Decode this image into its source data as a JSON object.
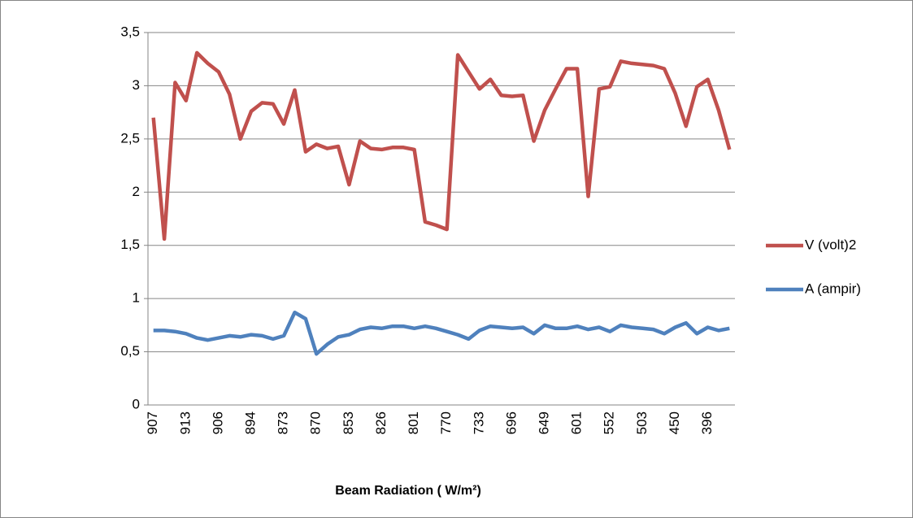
{
  "chart_data": {
    "type": "line",
    "x_label": "Beam Radiation ( W/m²)",
    "categories": [
      "907",
      null,
      null,
      "913",
      null,
      null,
      "906",
      null,
      null,
      "894",
      null,
      null,
      "873",
      null,
      null,
      "870",
      null,
      null,
      "853",
      null,
      null,
      "826",
      null,
      null,
      "801",
      null,
      null,
      "770",
      null,
      null,
      "733",
      null,
      null,
      "696",
      null,
      null,
      "649",
      null,
      null,
      "601",
      null,
      null,
      "552",
      null,
      null,
      "503",
      null,
      null,
      "450",
      null,
      null,
      "396",
      null,
      null
    ],
    "series": [
      {
        "name": "V (volt)2",
        "color": "#c0504d",
        "values": [
          2.7,
          1.56,
          3.03,
          2.86,
          3.31,
          3.21,
          3.13,
          2.92,
          2.5,
          2.76,
          2.84,
          2.83,
          2.64,
          2.96,
          2.38,
          2.45,
          2.41,
          2.43,
          2.07,
          2.48,
          2.41,
          2.4,
          2.42,
          2.42,
          2.4,
          1.72,
          1.69,
          1.65,
          3.29,
          3.13,
          2.97,
          3.06,
          2.91,
          2.9,
          2.91,
          2.48,
          2.77,
          2.97,
          3.16,
          3.16,
          1.96,
          2.97,
          2.99,
          3.23,
          3.21,
          3.2,
          3.19,
          3.16,
          2.93,
          2.62,
          2.99,
          3.06,
          2.77,
          2.4
        ]
      },
      {
        "name": "A (ampir)",
        "color": "#4f81bd",
        "values": [
          0.7,
          0.7,
          0.69,
          0.67,
          0.63,
          0.61,
          0.63,
          0.65,
          0.64,
          0.66,
          0.65,
          0.62,
          0.65,
          0.87,
          0.81,
          0.48,
          0.57,
          0.64,
          0.66,
          0.71,
          0.73,
          0.72,
          0.74,
          0.74,
          0.72,
          0.74,
          0.72,
          0.69,
          0.66,
          0.62,
          0.7,
          0.74,
          0.73,
          0.72,
          0.73,
          0.67,
          0.75,
          0.72,
          0.72,
          0.74,
          0.71,
          0.73,
          0.69,
          0.75,
          0.73,
          0.72,
          0.71,
          0.67,
          0.73,
          0.77,
          0.67,
          0.73,
          0.7,
          0.72
        ]
      }
    ],
    "ylim": [
      0,
      3.5
    ],
    "yticks": [
      0,
      {
        "value": 0.5,
        "label": "0,5"
      },
      1,
      {
        "value": 1.5,
        "label": "1,5"
      },
      2,
      {
        "value": 2.5,
        "label": "2,5"
      },
      3,
      {
        "value": 3.5,
        "label": "3,5"
      }
    ],
    "grid": true,
    "legend": "right"
  }
}
